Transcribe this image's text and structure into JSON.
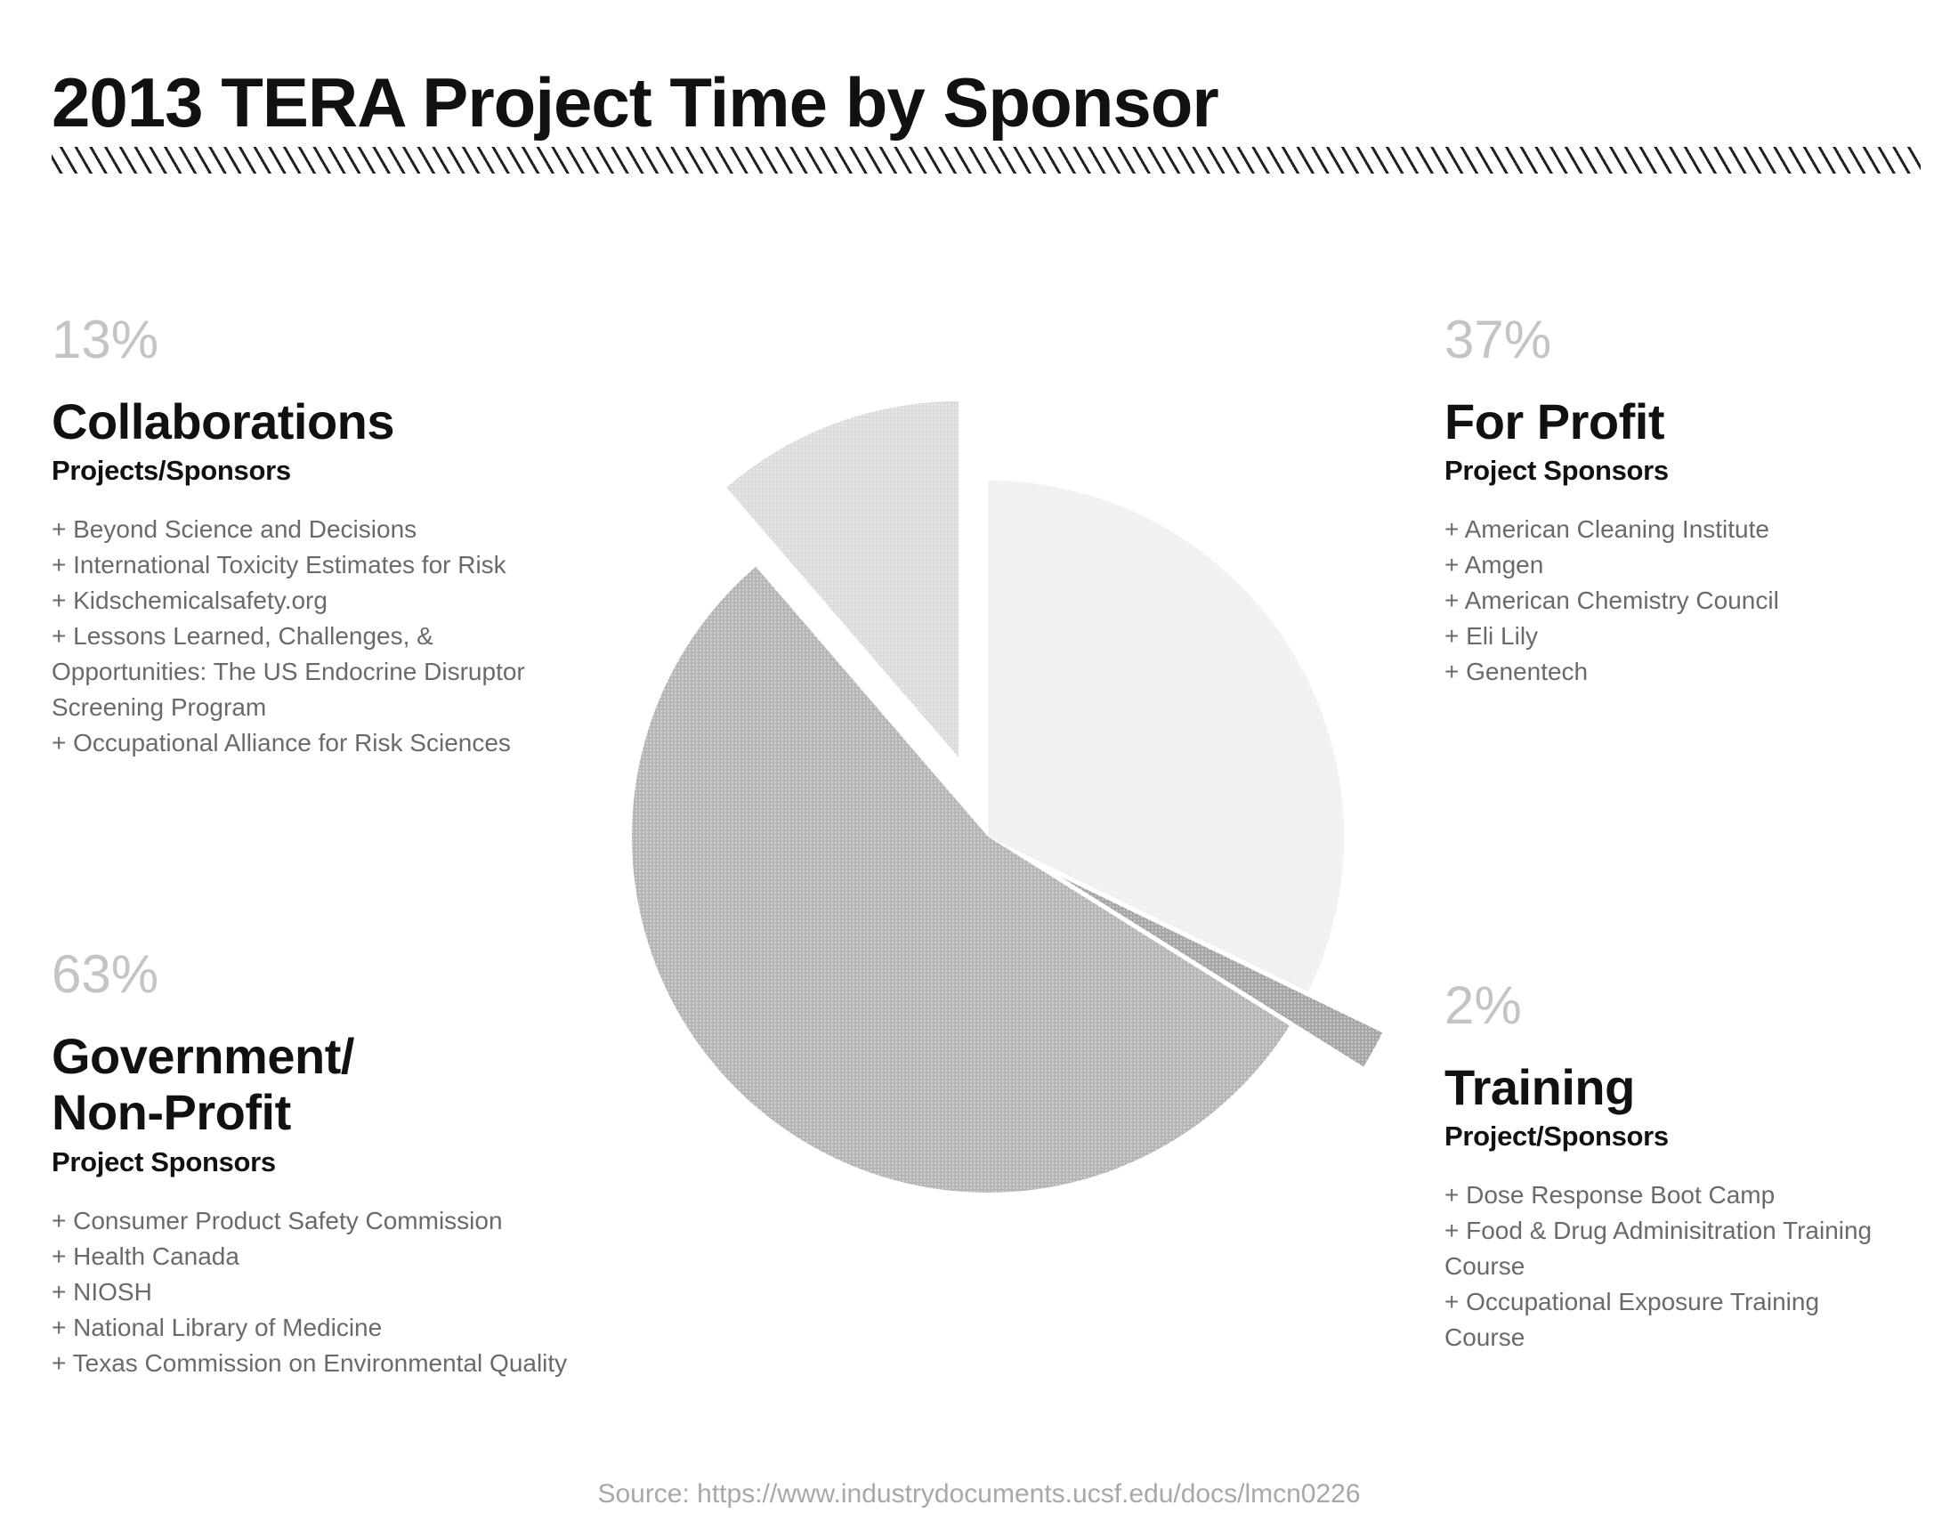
{
  "title": "2013 TERA Project Time by Sponsor",
  "categories": {
    "collaborations": {
      "percent": "13%",
      "name": "Collaborations",
      "subtitle": "Projects/Sponsors",
      "items": [
        "+ Beyond Science and Decisions",
        "+ International Toxicity Estimates for Risk",
        "+ Kidschemicalsafety.org",
        "+ Lessons Learned, Challenges, &",
        "Opportunities: The US Endocrine Disruptor",
        "Screening Program",
        "+ Occupational Alliance for Risk Sciences"
      ]
    },
    "for_profit": {
      "percent": "37%",
      "name": "For Profit",
      "subtitle": "Project Sponsors",
      "items": [
        "+ American Cleaning Institute",
        "+ Amgen",
        "+ American Chemistry Council",
        "+ Eli Lily",
        "+ Genentech"
      ]
    },
    "government": {
      "percent": "63%",
      "name_line1": "Government/",
      "name_line2": "Non-Profit",
      "subtitle": "Project Sponsors",
      "items": [
        "+ Consumer Product Safety Commission",
        "+ Health Canada",
        "+ NIOSH",
        "+ National Library of Medicine",
        "+ Texas Commission on Environmental Quality"
      ]
    },
    "training": {
      "percent": "2%",
      "name": "Training",
      "subtitle": "Project/Sponsors",
      "items": [
        "+ Dose Response Boot Camp",
        "+ Food & Drug Adminisitration Training",
        "Course",
        "+ Occupational Exposure Training",
        "Course"
      ]
    }
  },
  "source": "Source: https://www.industrydocuments.ucsf.edu/docs/lmcn0226",
  "chart_data": {
    "type": "pie",
    "title": "2013 TERA Project Time by Sponsor",
    "slices": [
      {
        "label": "For Profit",
        "value": 37,
        "color": "#f0f0f0",
        "exploded": false
      },
      {
        "label": "Training",
        "value": 2,
        "color": "#a6a6a6",
        "exploded": true
      },
      {
        "label": "Government/Non-Profit",
        "value": 63,
        "color": "#b5b5b5",
        "exploded": false
      },
      {
        "label": "Collaborations",
        "value": 13,
        "color": "#dcdcdc",
        "exploded": true
      }
    ],
    "legend": "none"
  }
}
